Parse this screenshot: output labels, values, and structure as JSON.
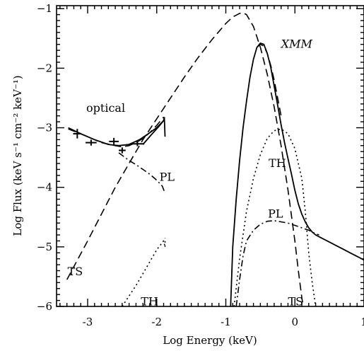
{
  "chart_data": {
    "type": "line",
    "title": "",
    "xlabel": "Log Energy (keV)",
    "ylabel": "Log Flux (keV s⁻¹ cm⁻² keV⁻¹)",
    "xlim": [
      -3.45,
      1.0
    ],
    "ylim": [
      -6.0,
      -0.95
    ],
    "xticks": [
      -3,
      -2,
      -1,
      0,
      1
    ],
    "yticks": [
      -6,
      -5,
      -4,
      -3,
      -2,
      -1
    ],
    "grid": false,
    "legend": "none",
    "series": [
      {
        "style": "solid",
        "x": [
          -3.28,
          -3.1,
          -2.9,
          -2.7,
          -2.55,
          -2.4,
          -2.25,
          -2.12,
          -2.0,
          -1.9
        ],
        "y": [
          -3.0,
          -3.1,
          -3.2,
          -3.28,
          -3.3,
          -3.28,
          -3.2,
          -3.1,
          -3.0,
          -2.88
        ]
      },
      {
        "style": "solid",
        "x": [
          -2.2,
          -2.08,
          -1.97,
          -1.9,
          -1.89
        ],
        "y": [
          -3.28,
          -3.12,
          -2.98,
          -2.88,
          -2.82
        ]
      },
      {
        "style": "solid",
        "x": [
          -1.89,
          -1.88
        ],
        "y": [
          -2.82,
          -3.15
        ]
      },
      {
        "style": "solid",
        "x": [
          -0.93,
          -0.9,
          -0.85,
          -0.8,
          -0.75,
          -0.7,
          -0.65,
          -0.6,
          -0.55,
          -0.5,
          -0.45,
          -0.4,
          -0.35,
          -0.3,
          -0.25,
          -0.2,
          -0.15,
          -0.1,
          -0.05,
          0.0,
          0.05,
          0.1,
          0.15,
          0.2,
          0.25,
          0.3,
          0.4,
          0.5,
          0.6,
          0.7,
          0.8,
          0.9,
          1.0
        ],
        "y": [
          -6.0,
          -5.0,
          -4.2,
          -3.55,
          -3.0,
          -2.55,
          -2.15,
          -1.85,
          -1.65,
          -1.58,
          -1.6,
          -1.75,
          -1.98,
          -2.3,
          -2.62,
          -2.95,
          -3.25,
          -3.52,
          -3.78,
          -4.05,
          -4.28,
          -4.45,
          -4.58,
          -4.68,
          -4.75,
          -4.8,
          -4.86,
          -4.92,
          -4.98,
          -5.04,
          -5.1,
          -5.16,
          -5.22
        ]
      },
      {
        "style": "dashed",
        "x": [
          -3.3,
          -3.0,
          -2.8,
          -2.6,
          -2.4,
          -2.2,
          -2.0,
          -1.8,
          -1.6,
          -1.4,
          -1.2,
          -1.0,
          -0.9,
          -0.8,
          -0.75,
          -0.7,
          -0.6,
          -0.5,
          -0.4,
          -0.3,
          -0.2,
          -0.1,
          0.0,
          0.05,
          0.1,
          0.12
        ],
        "y": [
          -5.55,
          -4.9,
          -4.45,
          -4.0,
          -3.6,
          -3.2,
          -2.85,
          -2.5,
          -2.15,
          -1.82,
          -1.52,
          -1.25,
          -1.14,
          -1.08,
          -1.07,
          -1.1,
          -1.3,
          -1.65,
          -2.1,
          -2.65,
          -3.3,
          -4.05,
          -4.9,
          -5.4,
          -5.85,
          -6.0
        ]
      },
      {
        "style": "dashed",
        "x": [
          -3.28,
          -3.0,
          -2.8,
          -2.6,
          -2.5,
          -2.4,
          -2.3,
          -2.2,
          -2.1,
          -2.0,
          -1.9
        ],
        "y": [
          -3.02,
          -3.15,
          -3.25,
          -3.3,
          -3.32,
          -3.3,
          -3.25,
          -3.18,
          -3.08,
          -2.96,
          -2.82
        ]
      },
      {
        "style": "dashed",
        "x": [
          -0.55,
          -0.5,
          -0.45,
          -0.4,
          -0.35,
          -0.3,
          -0.25,
          -0.2
        ],
        "y": [
          -1.65,
          -1.6,
          -1.63,
          -1.75,
          -1.95,
          -2.2,
          -2.5,
          -2.8
        ]
      },
      {
        "style": "dotted",
        "x": [
          -2.5,
          -2.3,
          -2.15,
          -2.0,
          -1.9,
          -1.88
        ],
        "y": [
          -6.0,
          -5.65,
          -5.35,
          -5.05,
          -4.9,
          -5.0
        ]
      },
      {
        "style": "dotted",
        "x": [
          -1.88,
          -1.88
        ],
        "y": [
          -5.0,
          -4.85
        ]
      },
      {
        "style": "dotted",
        "x": [
          -0.88,
          -0.8,
          -0.7,
          -0.6,
          -0.5,
          -0.4,
          -0.3,
          -0.2,
          -0.1,
          0.0,
          0.1,
          0.15,
          0.2,
          0.25,
          0.3
        ],
        "y": [
          -6.0,
          -5.2,
          -4.4,
          -3.85,
          -3.45,
          -3.18,
          -3.05,
          -3.02,
          -3.1,
          -3.35,
          -3.85,
          -4.4,
          -5.1,
          -5.6,
          -6.0
        ]
      },
      {
        "style": "dashdot",
        "x": [
          -2.55,
          -2.4,
          -2.3,
          -2.2,
          -2.1,
          -2.0,
          -1.92,
          -1.88
        ],
        "y": [
          -3.42,
          -3.55,
          -3.62,
          -3.7,
          -3.78,
          -3.88,
          -3.98,
          -4.1
        ]
      },
      {
        "style": "dashdot",
        "x": [
          -1.88,
          -1.88
        ],
        "y": [
          -4.1,
          -4.1
        ]
      },
      {
        "style": "dashdot",
        "x": [
          -0.85,
          -0.8,
          -0.75,
          -0.7,
          -0.6,
          -0.5,
          -0.4,
          -0.3,
          -0.2,
          -0.1,
          0.0,
          0.1,
          0.2,
          0.3,
          0.35
        ],
        "y": [
          -6.0,
          -5.55,
          -5.15,
          -4.9,
          -4.72,
          -4.62,
          -4.57,
          -4.56,
          -4.58,
          -4.6,
          -4.64,
          -4.68,
          -4.72,
          -4.78,
          -4.8
        ]
      }
    ],
    "error_points": [
      {
        "x": -3.15,
        "y": -3.1,
        "xerr": 0.06,
        "yerr": 0.08
      },
      {
        "x": -2.95,
        "y": -3.25,
        "xerr": 0.08,
        "yerr": 0.05
      },
      {
        "x": -2.62,
        "y": -3.23,
        "xerr": 0.07,
        "yerr": 0.06
      },
      {
        "x": -2.5,
        "y": -3.38,
        "xerr": 0.05,
        "yerr": 0.05
      },
      {
        "x": -2.28,
        "y": -3.27,
        "xerr": 0.1,
        "yerr": 0.04
      }
    ],
    "annotations": [
      {
        "text": "optical",
        "x": -3.02,
        "y": -2.67,
        "italic": false
      },
      {
        "text": "PL",
        "x": -1.96,
        "y": -3.83,
        "italic": false
      },
      {
        "text": "TH",
        "x": -0.38,
        "y": -3.6,
        "italic": false
      },
      {
        "text": "PL",
        "x": -0.39,
        "y": -4.45,
        "italic": false
      },
      {
        "text": "TS",
        "x": -3.29,
        "y": -5.42,
        "italic": false
      },
      {
        "text": "TH",
        "x": -2.23,
        "y": -5.92,
        "italic": false
      },
      {
        "text": "TS",
        "x": -0.1,
        "y": -5.92,
        "italic": false
      },
      {
        "text": "XMM",
        "x": -0.2,
        "y": -1.6,
        "italic": true
      }
    ]
  }
}
